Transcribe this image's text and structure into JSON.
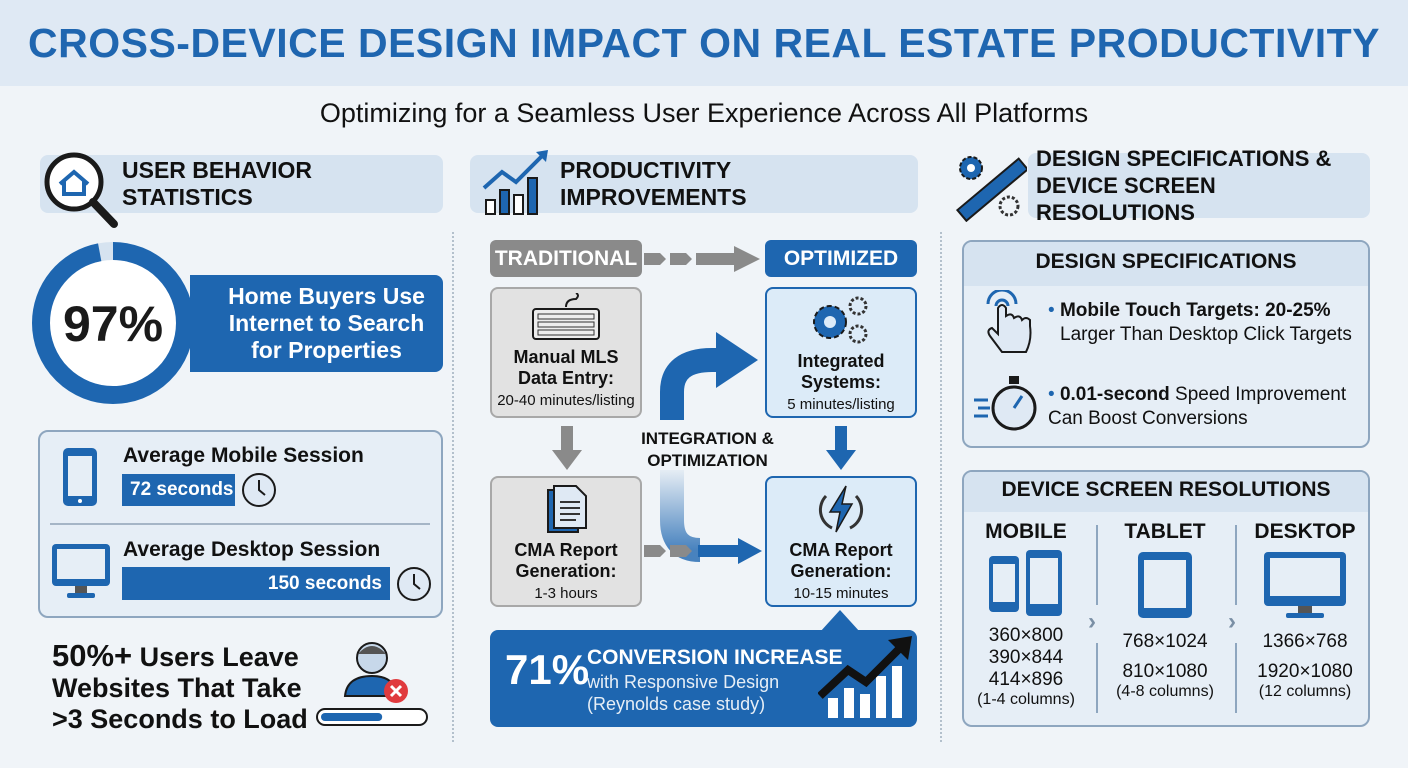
{
  "title": "CROSS-DEVICE DESIGN IMPACT ON REAL ESTATE PRODUCTIVITY",
  "subtitle": "Optimizing for a Seamless User Experience Across All Platforms",
  "colors": {
    "brand_blue": "#1e66b0",
    "gray": "#8a8a8a",
    "light_blue": "#dcebf8",
    "alert_red": "#e03a3e"
  },
  "user_behavior": {
    "header": "USER BEHAVIOR STATISTICS",
    "header_icon": "house-magnifier-icon",
    "donut_value": "97%",
    "donut_percent": 97,
    "donut_label": "Home Buyers Use Internet to Search for Properties",
    "mobile_label": "Average Mobile Session",
    "mobile_value": "72 seconds",
    "mobile_seconds": 72,
    "desktop_label": "Average Desktop Session",
    "desktop_value": "150 seconds",
    "desktop_seconds": 150,
    "bounce_strong": "50%+",
    "bounce_text": " Users Leave Websites That Take >3 Seconds to Load",
    "load_progress": 0.6
  },
  "productivity": {
    "header": "PRODUCTIVITY IMPROVEMENTS",
    "traditional": "TRADITIONAL",
    "optimized": "OPTIMIZED",
    "trad1_title": "Manual MLS Data Entry:",
    "trad1_sub": "20-40 minutes/listing",
    "trad2_title": "CMA Report Generation:",
    "trad2_sub": "1-3 hours",
    "opt1_title": "Integrated Systems:",
    "opt1_sub": "5 minutes/listing",
    "opt2_title": "CMA Report Generation:",
    "opt2_sub": "10-15 minutes",
    "middle_label": "INTEGRATION & OPTIMIZATION",
    "conv_value": "71%",
    "conv_title": "CONVERSION INCREASE",
    "conv_sub1": "with Responsive Design",
    "conv_sub2": "(Reynolds case study)"
  },
  "design": {
    "header": "DESIGN SPECIFICATIONS & DEVICE SCREEN RESOLUTIONS",
    "specs_title": "DESIGN SPECIFICATIONS",
    "spec1_strong": "Mobile Touch Targets: 20-25%",
    "spec1_text": "Larger Than Desktop Click Targets",
    "spec2_strong": "0.01-second",
    "spec2_text": " Speed Improvement Can Boost Conversions",
    "res_title": "DEVICE SCREEN RESOLUTIONS",
    "mobile": {
      "label": "MOBILE",
      "values": [
        "360×800",
        "390×844",
        "414×896"
      ],
      "cols": "(1-4 columns)"
    },
    "tablet": {
      "label": "TABLET",
      "values": [
        "768×1024",
        "810×1080"
      ],
      "cols": "(4-8 columns)"
    },
    "desktop": {
      "label": "DESKTOP",
      "values": [
        "1366×768",
        "1920×1080"
      ],
      "cols": "(12 columns)"
    }
  }
}
